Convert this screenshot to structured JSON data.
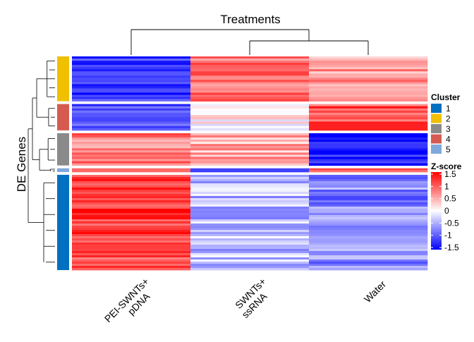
{
  "chart_data": {
    "type": "heatmap",
    "title": "Treatments",
    "ylabel": "DE Genes",
    "columns": [
      {
        "lines": [
          "PEI-SWNTs+",
          "pDNA"
        ]
      },
      {
        "lines": [
          "SWNTs+",
          "ssRNA"
        ]
      },
      {
        "lines": [
          "Water"
        ]
      }
    ],
    "column_dendrogram": [
      [
        1,
        2
      ],
      [
        0,
        [
          1,
          2
        ]
      ]
    ],
    "clusters": [
      {
        "id": "2",
        "color": "#F0C000",
        "share": 0.2214,
        "mean_z": [
          -1.2,
          0.8,
          0.6
        ]
      },
      {
        "id": "4",
        "color": "#D65A50",
        "share": 0.1301,
        "mean_z": [
          -1.1,
          0.1,
          1.0
        ]
      },
      {
        "id": "3",
        "color": "#8A8A8A",
        "share": 0.1595,
        "mean_z": [
          0.8,
          0.5,
          -1.35
        ]
      },
      {
        "id": "5",
        "color": "#7FA8DC",
        "share": 0.0184,
        "mean_z": [
          0.6,
          -1.5,
          0.9
        ]
      },
      {
        "id": "1",
        "color": "#0070C0",
        "share": 0.4706,
        "mean_z": [
          1.1,
          -0.4,
          -0.7
        ]
      }
    ],
    "legend_cluster": {
      "title": "Cluster",
      "items": [
        {
          "label": "1",
          "color": "#0070C0"
        },
        {
          "label": "2",
          "color": "#F0C000"
        },
        {
          "label": "3",
          "color": "#8A8A8A"
        },
        {
          "label": "4",
          "color": "#D65A50"
        },
        {
          "label": "5",
          "color": "#7FA8DC"
        }
      ]
    },
    "legend_zscore": {
      "title": "Z-score",
      "min": -1.5,
      "max": 1.5,
      "ticks": [
        "1.5",
        "1",
        "0.5",
        "0",
        "-0.5",
        "-1",
        "-1.5"
      ],
      "colors": {
        "low": "#0000FF",
        "mid": "#FFFFFF",
        "high": "#FF0000"
      }
    }
  }
}
